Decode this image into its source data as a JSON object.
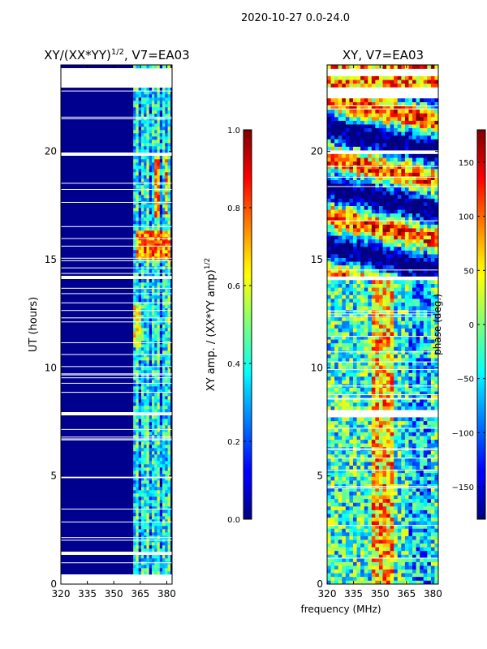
{
  "figure": {
    "suptitle": "2020-10-27 0.0-24.0",
    "shared_xlabel": "frequency (MHz)"
  },
  "chart_data": [
    {
      "type": "heatmap",
      "title": "XY/(XX*YY)^{1/2}, V7=EA03",
      "title_main": "XY/(XX*YY)",
      "title_sup": "1/2",
      "title_tail": ", V7=EA03",
      "xlabel": "",
      "ylabel": "UT (hours)",
      "xlim": [
        320,
        383
      ],
      "ylim": [
        0,
        24
      ],
      "xticks": [
        320,
        335,
        350,
        365,
        380
      ],
      "yticks": [
        0,
        5,
        10,
        15,
        20
      ],
      "data_freq_range": [
        361,
        382
      ],
      "missing_ranges_hours": [
        [
          0.0,
          0.5
        ],
        [
          1.3,
          1.45
        ],
        [
          7.8,
          8.0
        ],
        [
          14.1,
          14.3
        ],
        [
          19.85,
          20.0
        ],
        [
          22.9,
          23.8
        ]
      ],
      "colorbar": {
        "label_main": "XY amp. / (XX*YY amp)",
        "label_sup": "1/2",
        "vmin": 0.0,
        "vmax": 1.0,
        "ticks": [
          "0.0",
          "0.2",
          "0.4",
          "0.6",
          "0.8",
          "1.0"
        ],
        "tick_values": [
          0.0,
          0.2,
          0.4,
          0.6,
          0.8,
          1.0
        ]
      }
    },
    {
      "type": "heatmap",
      "title": "XY, V7=EA03",
      "xlabel": "frequency (MHz)",
      "ylabel": "",
      "xlim": [
        320,
        383
      ],
      "ylim": [
        0,
        24
      ],
      "xticks": [
        320,
        335,
        350,
        365,
        380
      ],
      "yticks": [
        0,
        5,
        10,
        15,
        20
      ],
      "data_freq_range": [
        320,
        383
      ],
      "missing_ranges_hours": [
        [
          1.3,
          1.45
        ],
        [
          7.8,
          8.0
        ],
        [
          14.1,
          14.3
        ],
        [
          19.85,
          20.0
        ],
        [
          22.4,
          22.9
        ],
        [
          23.5,
          23.8
        ]
      ],
      "colorbar": {
        "label": "phase (deg.)",
        "vmin": -180,
        "vmax": 180,
        "ticks": [
          "−150",
          "−100",
          "−50",
          "0",
          "50",
          "100",
          "150"
        ],
        "tick_values": [
          -150,
          -100,
          -50,
          0,
          50,
          100,
          150
        ]
      }
    }
  ]
}
